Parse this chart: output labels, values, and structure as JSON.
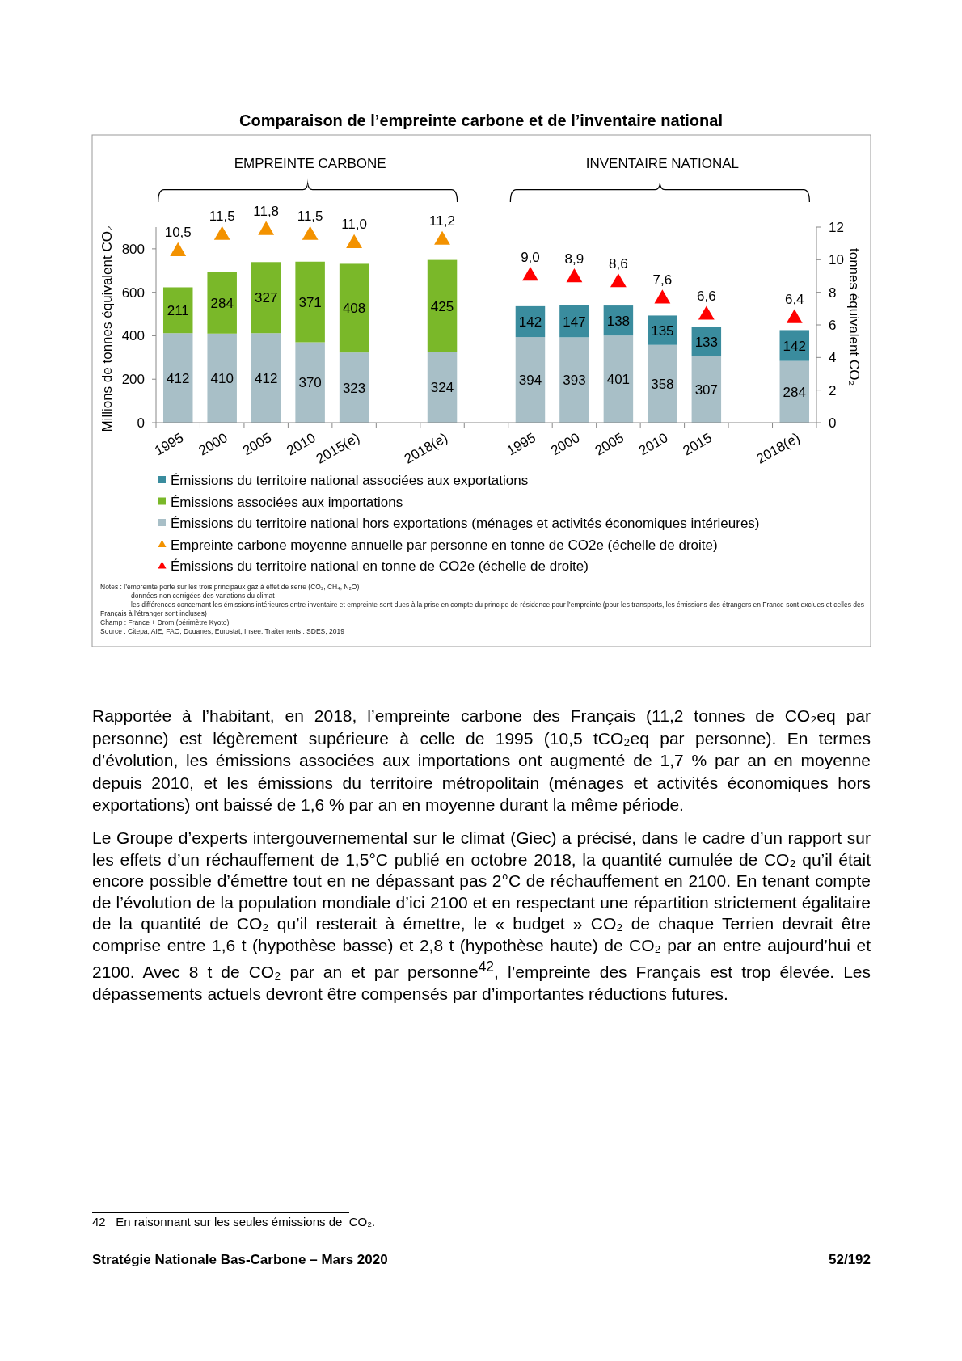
{
  "chart_data": {
    "type": "bar",
    "title": "Comparaison de l’empreinte carbone et de l’inventaire national",
    "ylabel": "Millions de tonnes équivalent CO₂",
    "y2label": "tonnes équivalent CO₂",
    "categories": [
      "1995",
      "2000",
      "2005",
      "2010",
      "2015(e)",
      null,
      "2018(e)",
      null,
      "1995",
      "2000",
      "2005",
      "2010",
      "2015",
      null,
      "2018(e)"
    ],
    "stacked": true,
    "ylim": [
      0,
      900
    ],
    "yticks": [
      0,
      200,
      400,
      600,
      800
    ],
    "y2lim": [
      0,
      12
    ],
    "y2ticks": [
      0,
      2,
      4,
      6,
      8,
      10,
      12
    ],
    "legend": "bottom",
    "marker": "triangle",
    "series": [
      {
        "name": "Émissions du territoire national hors exportations (ménages et activités économiques intérieures)",
        "color": "#a8bfc7",
        "values": [
          412,
          410,
          412,
          370,
          323,
          null,
          324,
          null,
          394,
          393,
          401,
          358,
          307,
          null,
          284
        ],
        "value_labels": [
          "412",
          "410",
          "412",
          "370",
          "323",
          null,
          "324",
          null,
          "394",
          "393",
          "401",
          "358",
          "307",
          null,
          "284"
        ]
      },
      {
        "name": "Émissions associées aux importations",
        "color": "#7ab829",
        "values": [
          211,
          284,
          327,
          371,
          408,
          null,
          425,
          null,
          null,
          null,
          null,
          null,
          null,
          null,
          null
        ],
        "value_labels": [
          "211",
          "284",
          "327",
          "371",
          "408",
          null,
          "425",
          null,
          null,
          null,
          null,
          null,
          null,
          null,
          null
        ]
      },
      {
        "name": "Émissions du territoire national associées aux exportations",
        "color": "#3a8c9e",
        "values": [
          null,
          null,
          null,
          null,
          null,
          null,
          null,
          null,
          142,
          147,
          138,
          135,
          133,
          null,
          142
        ],
        "value_labels": [
          null,
          null,
          null,
          null,
          null,
          null,
          null,
          null,
          "142",
          "147",
          "138",
          "135",
          "133",
          null,
          "142"
        ]
      },
      {
        "name": "Empreinte carbone moyenne annuelle par personne en tonne de CO2e (échelle de droite)",
        "type": "scatter",
        "axis": "y2",
        "color": "#f39200",
        "values": [
          10.5,
          11.5,
          11.8,
          11.5,
          11.0,
          null,
          11.2,
          null,
          null,
          null,
          null,
          null,
          null,
          null,
          null
        ],
        "value_labels": [
          "10,5",
          "11,5",
          "11,8",
          "11,5",
          "11,0",
          null,
          "11,2",
          null,
          null,
          null,
          null,
          null,
          null,
          null,
          null
        ]
      },
      {
        "name": "Émissions du territoire national en tonne de CO2e (échelle de droite)",
        "type": "scatter",
        "axis": "y2",
        "color": "#ff0000",
        "values": [
          null,
          null,
          null,
          null,
          null,
          null,
          null,
          null,
          9.0,
          8.9,
          8.6,
          7.6,
          6.6,
          null,
          6.4
        ],
        "value_labels": [
          null,
          null,
          null,
          null,
          null,
          null,
          null,
          null,
          "9,0",
          "8,9",
          "8,6",
          "7,6",
          "6,6",
          null,
          "6,4"
        ]
      }
    ],
    "annotations": [
      "EMPREINTE CARBONE",
      "INVENTAIRE NATIONAL",
      "Notes : l’empreinte porte sur les trois principaux gaz à effet de serre (CO₂, CH₄, N₂O)",
      "données non corrigées des variations du climat",
      "les différences concernant les émissions intérieures entre inventaire et empreinte sont dues à la prise en compte du principe de résidence pour l’empreinte (pour les transports, les émissions des étrangers en France sont exclues et celles des Français à l’étranger sont incluses)",
      "Champ : France + Drom (périmètre Kyoto)",
      "Source : Citepa, AIE, FAO, Douanes, Eurostat, Insee. Traitements : SDES, 2019",
      "Rapportée à l’habitant, en 2018, l’empreinte carbone des Français (11,2 tonnes de CO₂eq par personne) est légèrement supérieure à celle de 1995 (10,5 tCO₂eq par personne). En termes d’évolution, les émissions associées aux importations ont augmenté de 1,7 % par an en moyenne depuis 2010, et les émissions du territoire métropolitain (ménages et activités économiques hors exportations) ont baissé de 1,6 % par an en moyenne durant la même période.",
      "Le Groupe d’experts intergouvernemental sur le climat (Giec) a précisé, dans le cadre d’un rapport sur les effets d’un réchauffement de 1,5°C publié en octobre 2018, la quantité cumulée de CO₂ qu’il était encore possible d’émettre tout en ne dépassant pas 2°C de réchauffement en 2100. En tenant compte de l’évolution de la population mondiale d’ici 2100 et en respectant une répartition strictement égalitaire de la quantité de CO₂ qu’il resterait à émettre, le « budget » CO₂ de chaque Terrien devrait être comprise entre 1,6 t (hypothèse basse) et 2,8 t (hypothèse haute) de CO₂ par an entre aujourd’hui et 2100. Avec 8 t de CO₂ par an et par personne$^{42}$, l’empreinte des Français est trop élevée. Les dépassements actuels devront être compensés par d’importantes réductions futures.",
      "42   En raisonnant sur les seules émissions de  CO₂.",
      "Stratégie Nationale Bas-Carbone – Mars 2020",
      "52/192"
    ]
  }
}
